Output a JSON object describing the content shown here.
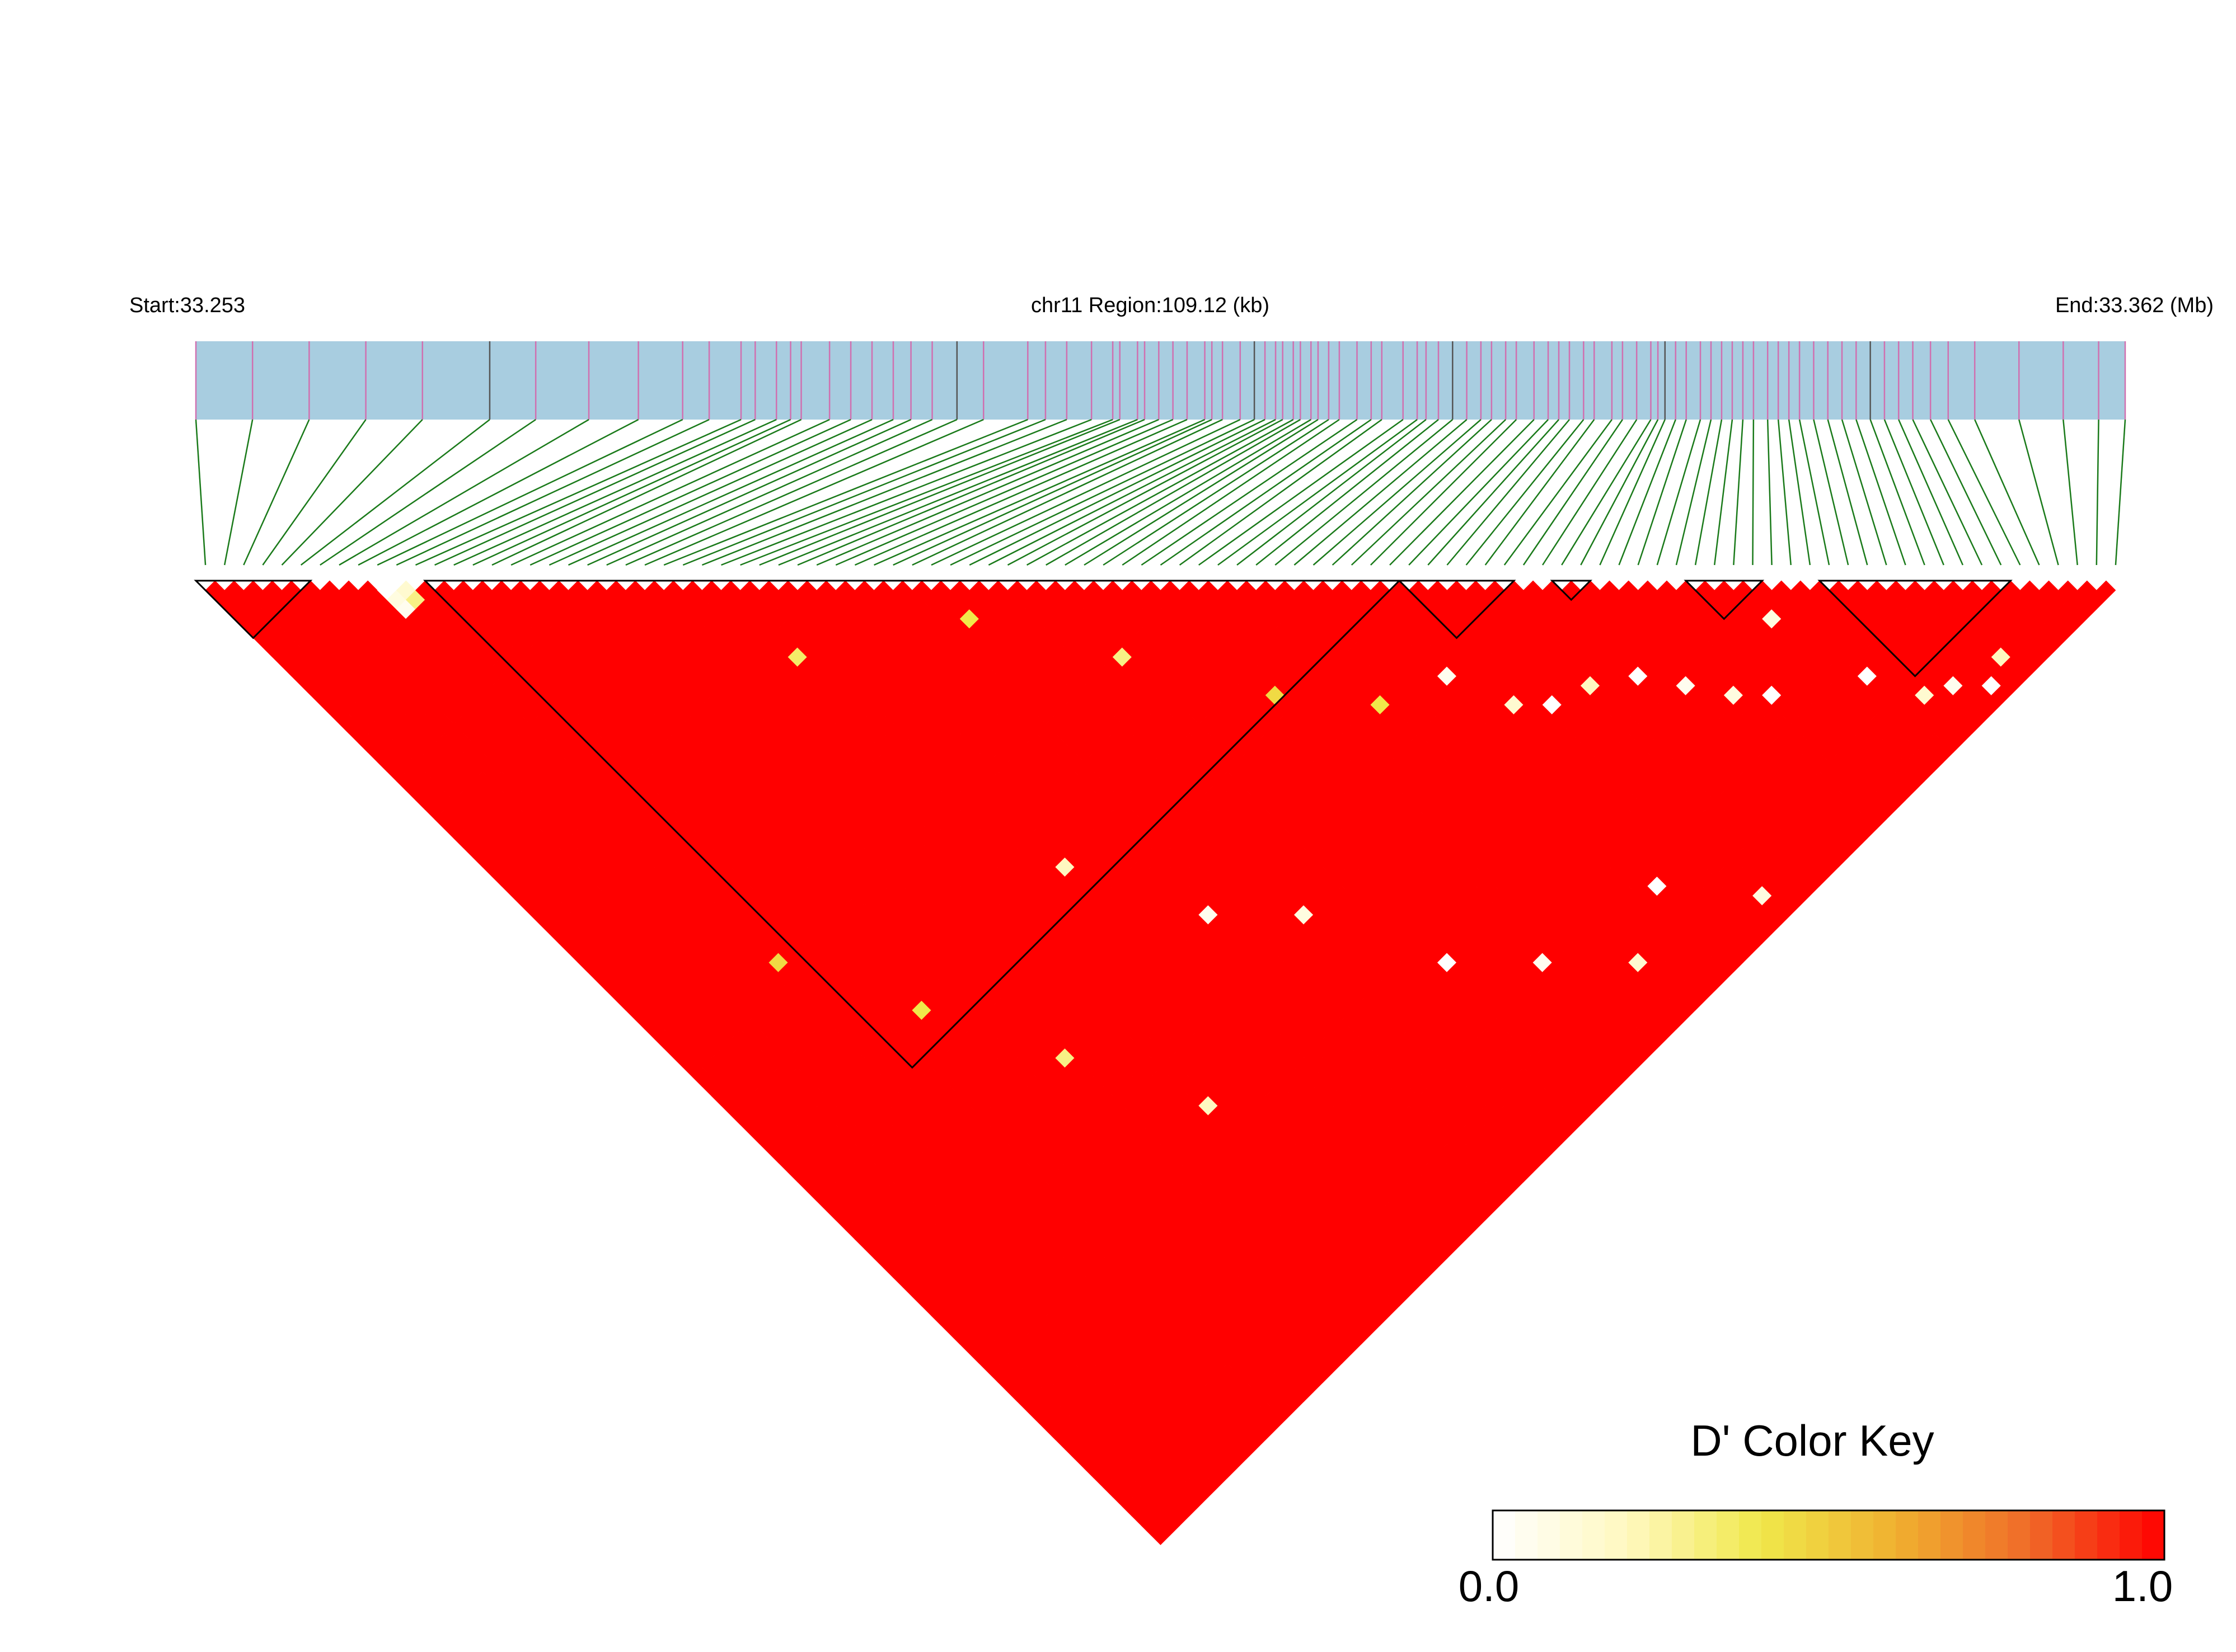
{
  "chart_data": {
    "type": "heatmap",
    "subtype": "ld-triangle",
    "header": {
      "start_label": "Start:33.253",
      "region_label": "chr11 Region:109.12 (kb)",
      "end_label": "End:33.362 (Mb)"
    },
    "region": {
      "chromosome": "chr11",
      "start_mb": 33.253,
      "end_mb": 33.362,
      "length_kb": 109.12
    },
    "snp_count": 101,
    "snp_positions_mb": [
      33.253,
      33.2562,
      33.2594,
      33.2626,
      33.2658,
      33.2696,
      33.2722,
      33.2752,
      33.278,
      33.2805,
      33.282,
      33.2838,
      33.2846,
      33.2858,
      33.2866,
      33.2872,
      33.2888,
      33.29,
      33.2912,
      33.2924,
      33.2934,
      33.2946,
      33.296,
      33.2975,
      33.3,
      33.301,
      33.3022,
      33.3036,
      33.3048,
      33.3052,
      33.3062,
      33.3066,
      33.3074,
      33.3082,
      33.309,
      33.31,
      33.3104,
      33.311,
      33.312,
      33.3128,
      33.3134,
      33.314,
      33.3144,
      33.315,
      33.3154,
      33.316,
      33.3164,
      33.317,
      33.3176,
      33.3186,
      33.3194,
      33.32,
      33.3212,
      33.322,
      33.3225,
      33.3232,
      33.324,
      33.3248,
      33.3256,
      33.3262,
      33.327,
      33.3276,
      33.3286,
      33.3294,
      33.33,
      33.3306,
      33.3314,
      33.332,
      33.333,
      33.3336,
      33.3344,
      33.3352,
      33.3356,
      33.336,
      33.3366,
      33.3372,
      33.338,
      33.3386,
      33.3392,
      33.3398,
      33.3404,
      33.341,
      33.3418,
      33.3424,
      33.343,
      33.3436,
      33.3444,
      33.3452,
      33.346,
      33.3468,
      33.3476,
      33.3484,
      33.3492,
      33.35,
      33.351,
      33.352,
      33.3535,
      33.356,
      33.3585,
      33.3605,
      33.362
    ],
    "haplotype_blocks": [
      {
        "first_snp": 0,
        "last_snp": 5
      },
      {
        "first_snp": 12,
        "last_snp": 62
      },
      {
        "first_snp": 63,
        "last_snp": 68
      },
      {
        "first_snp": 71,
        "last_snp": 72
      },
      {
        "first_snp": 78,
        "last_snp": 81
      },
      {
        "first_snp": 85,
        "last_snp": 94
      }
    ],
    "low_d_prime_pairs": [
      {
        "snp_i": 9,
        "snp_j": 10,
        "d_prime": 0.0
      },
      {
        "snp_i": 9,
        "snp_j": 11,
        "d_prime": 0.1
      },
      {
        "snp_i": 9,
        "snp_j": 12,
        "d_prime": 0.05
      },
      {
        "snp_i": 10,
        "snp_j": 11,
        "d_prime": 0.15
      },
      {
        "snp_i": 10,
        "snp_j": 12,
        "d_prime": 0.3
      },
      {
        "snp_i": 27,
        "snp_j": 35,
        "d_prime": 0.35
      },
      {
        "snp_i": 38,
        "snp_j": 42,
        "d_prime": 0.4
      },
      {
        "snp_i": 44,
        "snp_j": 52,
        "d_prime": 0.3
      },
      {
        "snp_i": 50,
        "snp_j": 62,
        "d_prime": 0.45
      },
      {
        "snp_i": 55,
        "snp_j": 68,
        "d_prime": 0.4
      },
      {
        "snp_i": 60,
        "snp_j": 70,
        "d_prime": 0.05
      },
      {
        "snp_i": 62,
        "snp_j": 75,
        "d_prime": 0.15
      },
      {
        "snp_i": 64,
        "snp_j": 77,
        "d_prime": 0.0
      },
      {
        "snp_i": 67,
        "snp_j": 78,
        "d_prime": 0.2
      },
      {
        "snp_i": 70,
        "snp_j": 80,
        "d_prime": 0.0
      },
      {
        "snp_i": 72,
        "snp_j": 83,
        "d_prime": 0.05
      },
      {
        "snp_i": 74,
        "snp_j": 86,
        "d_prime": 0.1
      },
      {
        "snp_i": 76,
        "snp_j": 88,
        "d_prime": 0.0
      },
      {
        "snp_i": 80,
        "snp_j": 84,
        "d_prime": 0.1
      },
      {
        "snp_i": 82,
        "snp_j": 92,
        "d_prime": 0.0
      },
      {
        "snp_i": 84,
        "snp_j": 96,
        "d_prime": 0.15
      },
      {
        "snp_i": 86,
        "snp_j": 97,
        "d_prime": 0.05
      },
      {
        "snp_i": 88,
        "snp_j": 99,
        "d_prime": 0.0
      },
      {
        "snp_i": 90,
        "snp_j": 98,
        "d_prime": 0.2
      },
      {
        "snp_i": 30,
        "snp_j": 60,
        "d_prime": 0.2
      },
      {
        "snp_i": 35,
        "snp_j": 70,
        "d_prime": 0.05
      },
      {
        "snp_i": 40,
        "snp_j": 75,
        "d_prime": 0.1
      },
      {
        "snp_i": 45,
        "snp_j": 85,
        "d_prime": 0.0
      },
      {
        "snp_i": 50,
        "snp_j": 90,
        "d_prime": 0.05
      },
      {
        "snp_i": 55,
        "snp_j": 95,
        "d_prime": 0.15
      },
      {
        "snp_i": 60,
        "snp_j": 92,
        "d_prime": 0.0
      },
      {
        "snp_i": 65,
        "snp_j": 98,
        "d_prime": 0.1
      },
      {
        "snp_i": 20,
        "snp_j": 70,
        "d_prime": 0.3
      },
      {
        "snp_i": 25,
        "snp_j": 80,
        "d_prime": 0.2
      },
      {
        "snp_i": 15,
        "snp_j": 60,
        "d_prime": 0.4
      },
      {
        "snp_i": 10,
        "snp_j": 50,
        "d_prime": 0.45
      }
    ],
    "default_d_prime": 1.0,
    "color_scale": {
      "title": "D' Color Key",
      "min": 0.0,
      "max": 1.0,
      "min_label": "0.0",
      "max_label": "1.0",
      "colors": [
        "#ffffff",
        "#fff8c0",
        "#f0e84a",
        "#f0b030",
        "#f06a28",
        "#ff0000"
      ]
    },
    "colors": {
      "gene_track": "#a8cde0",
      "snp_tick": "#d070b0",
      "snp_tick_dark": "#555555",
      "connector": "#1a7a1a",
      "block_outline": "#000000"
    }
  }
}
